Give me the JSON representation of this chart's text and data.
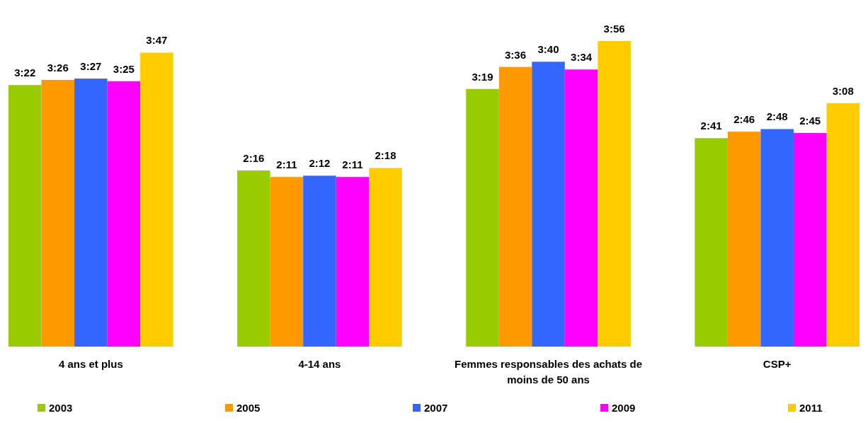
{
  "chart_data": {
    "type": "bar",
    "categories": [
      "4 ans et plus",
      "4-14 ans",
      "Femmes responsables des achats de moins de 50 ans",
      "CSP+"
    ],
    "series": [
      {
        "name": "2003",
        "color": "#99cc00",
        "values": [
          202,
          136,
          199,
          161
        ],
        "value_labels": [
          "3:22",
          "2:16",
          "3:19",
          "2:41"
        ]
      },
      {
        "name": "2005",
        "color": "#ff9900",
        "values": [
          206,
          131,
          216,
          166
        ],
        "value_labels": [
          "3:26",
          "2:11",
          "3:36",
          "2:46"
        ]
      },
      {
        "name": "2007",
        "color": "#3366ff",
        "values": [
          207,
          132,
          220,
          168
        ],
        "value_labels": [
          "3:27",
          "2:12",
          "3:40",
          "2:48"
        ]
      },
      {
        "name": "2009",
        "color": "#ff00ff",
        "values": [
          205,
          131,
          214,
          165
        ],
        "value_labels": [
          "3:25",
          "2:11",
          "3:34",
          "2:45"
        ]
      },
      {
        "name": "2011",
        "color": "#ffcc00",
        "values": [
          227,
          138,
          236,
          188
        ],
        "value_labels": [
          "3:47",
          "2:18",
          "3:56",
          "3:08"
        ]
      }
    ],
    "legend": "bottom",
    "grid": false
  }
}
